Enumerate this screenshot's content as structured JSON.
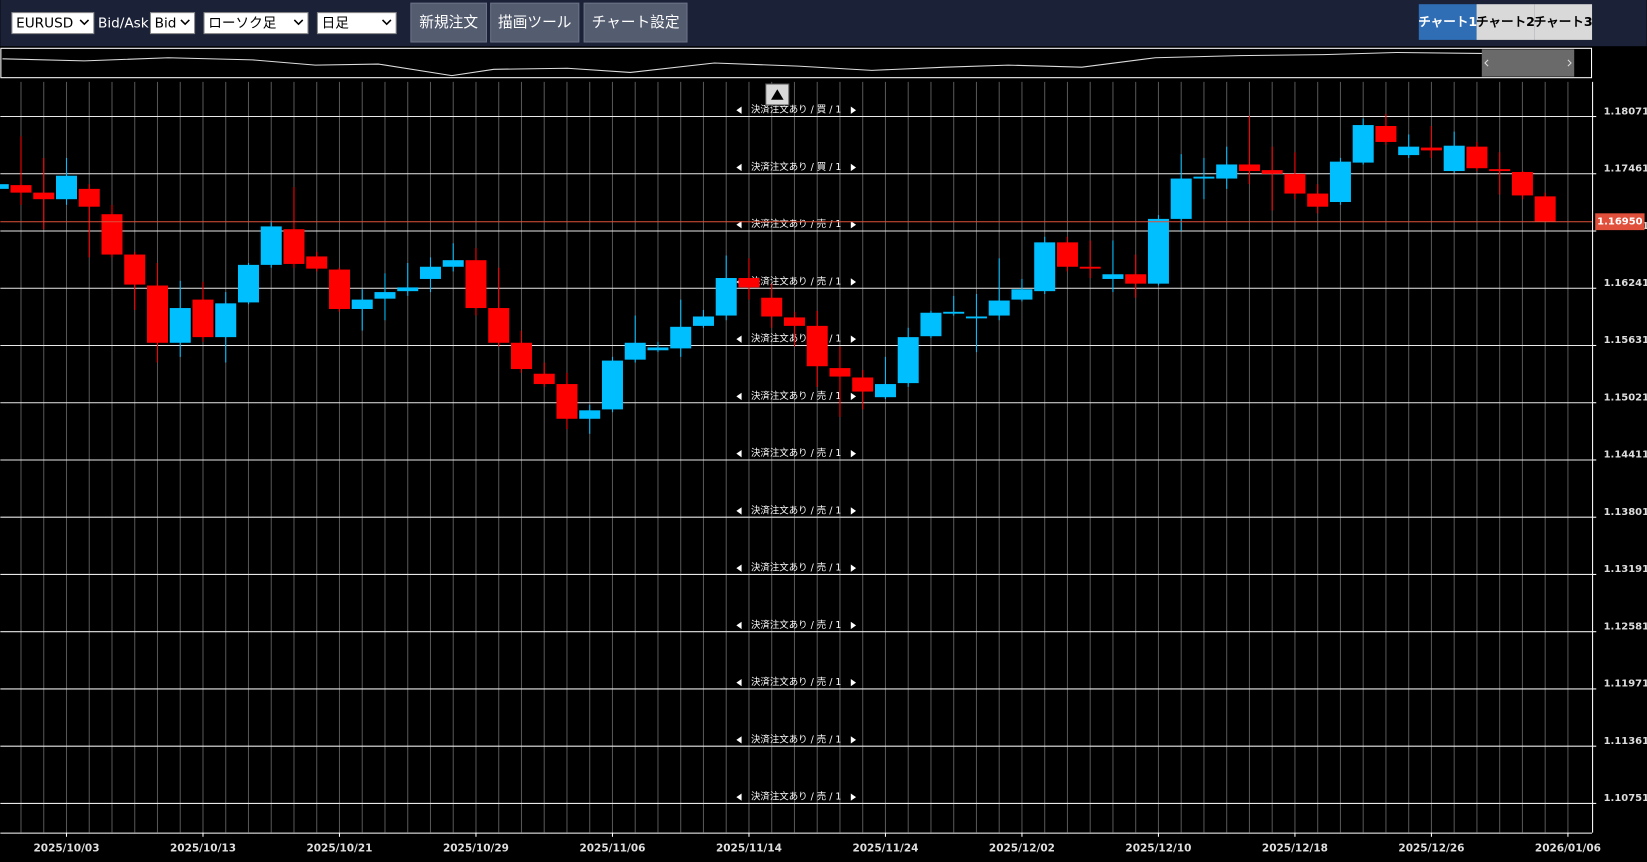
{
  "toolbar": {
    "symbol": "EURUSD",
    "bid_ask_label": "Bid/Ask",
    "price_side": "Bid",
    "chart_kind": "ローソク足",
    "timeframe": "日足",
    "buttons": [
      "新規注文",
      "描画ツール",
      "チャート設定"
    ],
    "tabs": [
      "チャート1",
      "チャート2",
      "チャート3"
    ],
    "active_tab": 0
  },
  "chart_data": {
    "type": "candlestick",
    "categories": [
      null,
      null,
      null,
      "2025/10/03",
      null,
      null,
      null,
      null,
      null,
      "2025/10/13",
      null,
      null,
      null,
      null,
      null,
      "2025/10/21",
      null,
      null,
      null,
      null,
      null,
      "2025/10/29",
      null,
      null,
      null,
      null,
      null,
      "2025/11/06",
      null,
      null,
      null,
      null,
      null,
      "2025/11/14",
      null,
      null,
      null,
      null,
      null,
      "2025/11/24",
      null,
      null,
      null,
      null,
      null,
      "2025/12/02",
      null,
      null,
      null,
      null,
      null,
      "2025/12/10",
      null,
      null,
      null,
      null,
      null,
      "2025/12/18",
      null,
      null,
      null,
      null,
      null,
      "2025/12/26",
      null,
      null,
      null,
      null,
      null,
      "2026/01/06"
    ],
    "open": [
      1.173,
      1.1734,
      1.1726,
      1.1719,
      1.173,
      1.1703,
      1.166,
      1.1627,
      1.1566,
      1.1612,
      1.1572,
      1.1609,
      1.1649,
      1.1687,
      1.1658,
      1.1644,
      1.1602,
      1.1613,
      1.1621,
      1.1634,
      1.1647,
      1.1654,
      1.1603,
      1.1566,
      1.1533,
      1.1522,
      1.1485,
      1.1495,
      1.1548,
      1.1558,
      1.156,
      1.1584,
      1.1595,
      1.1635,
      1.1614,
      1.1593,
      1.1584,
      1.1539,
      1.1529,
      1.1508,
      1.1523,
      1.1573,
      1.1597,
      1.1592,
      1.1595,
      1.1612,
      1.1621,
      1.1673,
      1.1647,
      1.1634,
      1.1639,
      1.1629,
      1.1698,
      1.1741,
      1.1741,
      1.1756,
      1.175,
      1.1746,
      1.1725,
      1.1716,
      1.1758,
      1.1797,
      1.1766,
      1.1774,
      1.1749,
      1.1775,
      1.1751,
      1.1748,
      1.1722,
      null
    ],
    "high": [
      1.1741,
      1.1786,
      1.1763,
      1.1763,
      1.1735,
      1.1713,
      1.1663,
      1.1651,
      1.1632,
      1.1631,
      1.162,
      1.1651,
      1.1696,
      1.1732,
      1.1663,
      1.1646,
      1.1623,
      1.164,
      1.1651,
      1.1657,
      1.1672,
      1.1667,
      1.1646,
      1.1579,
      1.1545,
      1.1534,
      1.15,
      1.1551,
      1.1595,
      1.1567,
      1.1612,
      1.1601,
      1.1659,
      1.1656,
      1.1629,
      1.1599,
      1.16,
      1.1562,
      1.1537,
      1.1551,
      1.1582,
      1.16,
      1.1616,
      1.1618,
      1.1656,
      1.1634,
      1.1679,
      1.1679,
      1.1675,
      1.1675,
      1.166,
      1.1702,
      1.1767,
      1.1763,
      1.1775,
      1.1808,
      1.1775,
      1.1769,
      1.1735,
      1.1763,
      1.1805,
      1.181,
      1.1788,
      1.1797,
      1.1791,
      1.178,
      1.1769,
      1.1749,
      1.1726,
      null
    ],
    "low": [
      1.1728,
      1.1713,
      1.1687,
      1.1713,
      1.1657,
      1.1657,
      1.1601,
      1.1545,
      1.1551,
      1.1567,
      1.1545,
      1.1607,
      1.1646,
      1.1646,
      1.1642,
      1.1599,
      1.1579,
      1.159,
      1.1616,
      1.162,
      1.1642,
      1.1595,
      1.1562,
      1.1534,
      1.1519,
      1.1474,
      1.1469,
      1.1492,
      1.1545,
      1.1556,
      1.1551,
      1.1582,
      1.159,
      1.1612,
      1.1582,
      1.1562,
      1.1519,
      1.1487,
      1.1495,
      1.1506,
      1.1519,
      1.1571,
      1.1595,
      1.1556,
      1.159,
      1.161,
      1.1618,
      1.1642,
      1.1635,
      1.162,
      1.1614,
      1.1627,
      1.1685,
      1.1719,
      1.173,
      1.1735,
      1.1707,
      1.1719,
      1.1704,
      1.1713,
      1.1756,
      1.1777,
      1.1763,
      1.1763,
      1.1747,
      1.1749,
      1.1724,
      1.1719,
      1.1695,
      null
    ],
    "close": [
      1.1735,
      1.1726,
      1.1719,
      1.1744,
      1.1711,
      1.166,
      1.1628,
      1.1566,
      1.1603,
      1.1572,
      1.1608,
      1.1649,
      1.169,
      1.165,
      1.1645,
      1.1602,
      1.1612,
      1.162,
      1.1625,
      1.1647,
      1.1654,
      1.1603,
      1.1566,
      1.1538,
      1.1522,
      1.1485,
      1.1494,
      1.1547,
      1.1566,
      1.1561,
      1.1583,
      1.1594,
      1.1635,
      1.1625,
      1.1594,
      1.1584,
      1.1541,
      1.153,
      1.1514,
      1.1522,
      1.1572,
      1.1598,
      1.1599,
      1.1594,
      1.1611,
      1.1623,
      1.1673,
      1.1647,
      1.1645,
      1.1639,
      1.1629,
      1.1698,
      1.1741,
      1.1743,
      1.1756,
      1.1749,
      1.1746,
      1.1725,
      1.1711,
      1.1759,
      1.1798,
      1.178,
      1.1775,
      1.1771,
      1.1776,
      1.1752,
      1.1749,
      1.1723,
      1.1695,
      null
    ],
    "up_color": "#00bfff",
    "down_color": "#ff0000",
    "ylim": [
      1.1044,
      1.1844
    ],
    "yticks": [
      1.18071,
      1.17461,
      1.16851,
      1.16241,
      1.15631,
      1.15021,
      1.14411,
      1.13801,
      1.13191,
      1.12581,
      1.11971,
      1.11361,
      1.10751
    ],
    "grid": true,
    "current_price": {
      "value": 1.1695,
      "label": "1.16950"
    },
    "order_labels": [
      "決済注文あり / 買 / 1",
      "決済注文あり / 買 / 1",
      "決済注文あり / 売 / 1",
      "決済注文あり / 売 / 1",
      "決済注文あり / 売 / 1",
      "決済注文あり / 売 / 1",
      "決済注文あり / 売 / 1",
      "決済注文あり / 売 / 1",
      "決済注文あり / 売 / 1",
      "決済注文あり / 売 / 1",
      "決済注文あり / 売 / 1",
      "決済注文あり / 売 / 1",
      "決済注文あり / 売 / 1"
    ]
  }
}
